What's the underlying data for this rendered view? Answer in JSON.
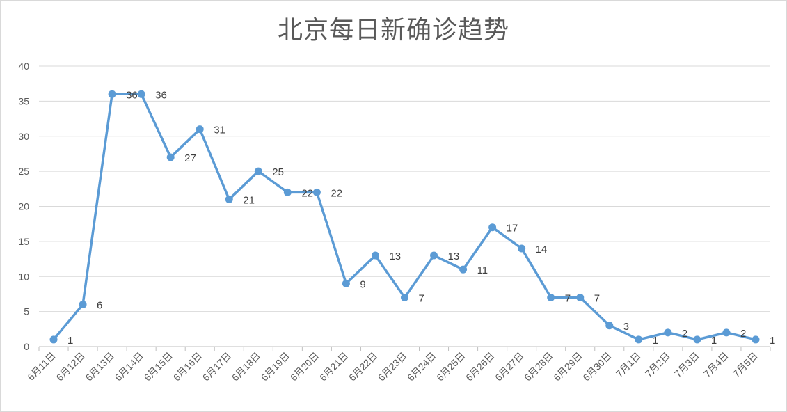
{
  "chart_data": {
    "type": "line",
    "title": "北京每日新确诊趋势",
    "xlabel": "",
    "ylabel": "",
    "ylim": [
      0,
      40
    ],
    "yticks": [
      0,
      5,
      10,
      15,
      20,
      25,
      30,
      35,
      40
    ],
    "grid": true,
    "legend": "none",
    "categories": [
      "6月11日",
      "6月12日",
      "6月13日",
      "6月14日",
      "6月15日",
      "6月16日",
      "6月17日",
      "6月18日",
      "6月19日",
      "6月20日",
      "6月21日",
      "6月22日",
      "6月23日",
      "6月24日",
      "6月25日",
      "6月26日",
      "6月27日",
      "6月28日",
      "6月29日",
      "6月30日",
      "7月1日",
      "7月2日",
      "7月3日",
      "7月4日",
      "7月5日"
    ],
    "series": [
      {
        "values": [
          1,
          6,
          36,
          36,
          27,
          31,
          21,
          25,
          22,
          22,
          9,
          13,
          7,
          13,
          11,
          17,
          14,
          7,
          7,
          3,
          1,
          2,
          1,
          2,
          1
        ]
      }
    ],
    "colors": {
      "line": "#5b9bd5",
      "grid": "#d9d9d9",
      "text": "#595959"
    }
  }
}
